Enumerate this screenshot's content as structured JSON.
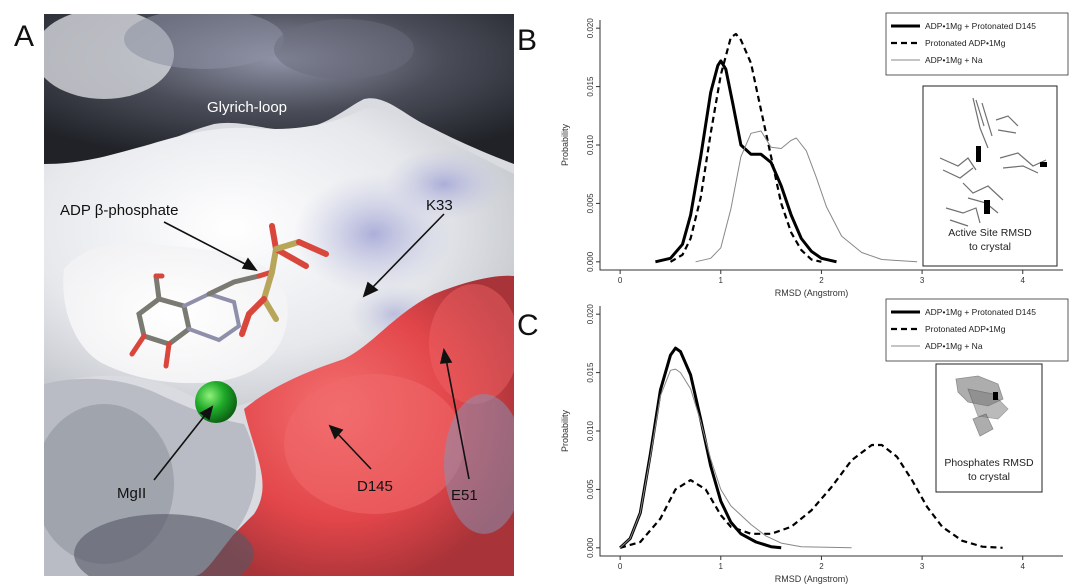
{
  "panels": {
    "a": "A",
    "b": "B",
    "c": "C"
  },
  "structure_labels": {
    "glyrich_loop": "Glyrich-loop",
    "adp_beta_phosphate": "ADP β-phosphate",
    "k33": "K33",
    "e51": "E51",
    "d145": "D145",
    "mgii": "MgII"
  },
  "colors": {
    "surface_negative": "#e8474a",
    "surface_neutral": "#e8eaec",
    "surface_positive": "#9a9ccc",
    "surface_dark": "#2b2d35",
    "magnesium": "#1faa2a",
    "adp_carbon": "#7a7a72",
    "adp_oxygen": "#d8463c",
    "phosphorus": "#b7a65a"
  },
  "chart_data": [
    {
      "type": "line",
      "panel": "B",
      "xlabel": "RMSD (Angstrom)",
      "ylabel": "Probability",
      "xlim": [
        -0.2,
        4.4
      ],
      "ylim": [
        -0.0007,
        0.0207
      ],
      "x_ticks": [
        "0",
        "1",
        "2",
        "3",
        "4"
      ],
      "y_ticks": [
        "0.000",
        "0.005",
        "0.010",
        "0.015",
        "0.020"
      ],
      "legend_position": "top-right",
      "series": [
        {
          "name": "ADP•1Mg + Protonated D145",
          "style": "solid-thick",
          "points": [
            [
              0.35,
              0.0
            ],
            [
              0.5,
              0.0003
            ],
            [
              0.62,
              0.0015
            ],
            [
              0.7,
              0.004
            ],
            [
              0.8,
              0.009
            ],
            [
              0.9,
              0.0145
            ],
            [
              0.97,
              0.0168
            ],
            [
              1.0,
              0.0172
            ],
            [
              1.05,
              0.0165
            ],
            [
              1.12,
              0.0135
            ],
            [
              1.2,
              0.01
            ],
            [
              1.3,
              0.0092
            ],
            [
              1.4,
              0.0092
            ],
            [
              1.5,
              0.0085
            ],
            [
              1.6,
              0.0065
            ],
            [
              1.7,
              0.004
            ],
            [
              1.8,
              0.002
            ],
            [
              1.9,
              0.0009
            ],
            [
              2.0,
              0.0003
            ],
            [
              2.15,
              0.0
            ]
          ]
        },
        {
          "name": "Protonated ADP•1Mg",
          "style": "dashed-thick",
          "points": [
            [
              0.5,
              0.0
            ],
            [
              0.62,
              0.0006
            ],
            [
              0.7,
              0.002
            ],
            [
              0.8,
              0.0055
            ],
            [
              0.9,
              0.011
            ],
            [
              1.0,
              0.016
            ],
            [
              1.1,
              0.0192
            ],
            [
              1.15,
              0.0195
            ],
            [
              1.2,
              0.019
            ],
            [
              1.3,
              0.017
            ],
            [
              1.4,
              0.013
            ],
            [
              1.5,
              0.009
            ],
            [
              1.6,
              0.005
            ],
            [
              1.7,
              0.0025
            ],
            [
              1.8,
              0.001
            ],
            [
              1.9,
              0.0002
            ],
            [
              2.0,
              0.0
            ]
          ]
        },
        {
          "name": "ADP•1Mg + Na",
          "style": "solid-thin",
          "points": [
            [
              0.75,
              0.0
            ],
            [
              0.9,
              0.0003
            ],
            [
              1.0,
              0.0012
            ],
            [
              1.1,
              0.0045
            ],
            [
              1.2,
              0.009
            ],
            [
              1.3,
              0.011
            ],
            [
              1.4,
              0.0112
            ],
            [
              1.5,
              0.0098
            ],
            [
              1.6,
              0.0097
            ],
            [
              1.7,
              0.0104
            ],
            [
              1.75,
              0.0106
            ],
            [
              1.85,
              0.0095
            ],
            [
              1.95,
              0.0072
            ],
            [
              2.05,
              0.0047
            ],
            [
              2.2,
              0.0022
            ],
            [
              2.4,
              0.0008
            ],
            [
              2.6,
              0.0002
            ],
            [
              2.95,
              0.0
            ]
          ]
        }
      ],
      "inset_caption": [
        "Active Site RMSD",
        "to crystal"
      ]
    },
    {
      "type": "line",
      "panel": "C",
      "xlabel": "RMSD (Angstrom)",
      "ylabel": "Probability",
      "xlim": [
        -0.2,
        4.4
      ],
      "ylim": [
        -0.0007,
        0.0207
      ],
      "x_ticks": [
        "0",
        "1",
        "2",
        "3",
        "4"
      ],
      "y_ticks": [
        "0.000",
        "0.005",
        "0.010",
        "0.015",
        "0.020"
      ],
      "legend_position": "top-right",
      "series": [
        {
          "name": "ADP•1Mg + Protonated D145",
          "style": "solid-thick",
          "points": [
            [
              0.0,
              0.0
            ],
            [
              0.1,
              0.0008
            ],
            [
              0.2,
              0.003
            ],
            [
              0.3,
              0.008
            ],
            [
              0.4,
              0.0135
            ],
            [
              0.5,
              0.0165
            ],
            [
              0.55,
              0.0171
            ],
            [
              0.6,
              0.0168
            ],
            [
              0.7,
              0.0148
            ],
            [
              0.8,
              0.011
            ],
            [
              0.9,
              0.007
            ],
            [
              1.0,
              0.004
            ],
            [
              1.1,
              0.0022
            ],
            [
              1.2,
              0.0012
            ],
            [
              1.35,
              0.0005
            ],
            [
              1.5,
              0.0001
            ],
            [
              1.6,
              0.0
            ]
          ]
        },
        {
          "name": "Protonated ADP•1Mg",
          "style": "dashed-thick",
          "points": [
            [
              0.0,
              0.0
            ],
            [
              0.2,
              0.0005
            ],
            [
              0.4,
              0.0025
            ],
            [
              0.55,
              0.005
            ],
            [
              0.7,
              0.0058
            ],
            [
              0.85,
              0.005
            ],
            [
              1.0,
              0.0028
            ],
            [
              1.1,
              0.0018
            ],
            [
              1.3,
              0.0012
            ],
            [
              1.5,
              0.0012
            ],
            [
              1.7,
              0.0018
            ],
            [
              1.9,
              0.0032
            ],
            [
              2.1,
              0.0052
            ],
            [
              2.3,
              0.0075
            ],
            [
              2.5,
              0.0088
            ],
            [
              2.6,
              0.0088
            ],
            [
              2.75,
              0.0078
            ],
            [
              2.9,
              0.0058
            ],
            [
              3.05,
              0.0035
            ],
            [
              3.2,
              0.0018
            ],
            [
              3.4,
              0.0006
            ],
            [
              3.6,
              0.0001
            ],
            [
              3.8,
              0.0
            ]
          ]
        },
        {
          "name": "ADP•1Mg + Na",
          "style": "solid-thin",
          "points": [
            [
              0.0,
              0.0
            ],
            [
              0.1,
              0.0008
            ],
            [
              0.2,
              0.003
            ],
            [
              0.3,
              0.0078
            ],
            [
              0.4,
              0.013
            ],
            [
              0.5,
              0.0152
            ],
            [
              0.55,
              0.0153
            ],
            [
              0.6,
              0.015
            ],
            [
              0.7,
              0.0136
            ],
            [
              0.8,
              0.0108
            ],
            [
              0.9,
              0.0076
            ],
            [
              1.0,
              0.005
            ],
            [
              1.1,
              0.0036
            ],
            [
              1.2,
              0.0028
            ],
            [
              1.3,
              0.002
            ],
            [
              1.45,
              0.001
            ],
            [
              1.6,
              0.0004
            ],
            [
              1.8,
              0.0001
            ],
            [
              2.3,
              0.0
            ]
          ]
        }
      ],
      "inset_caption": [
        "Phosphates RMSD",
        "to crystal"
      ]
    }
  ]
}
